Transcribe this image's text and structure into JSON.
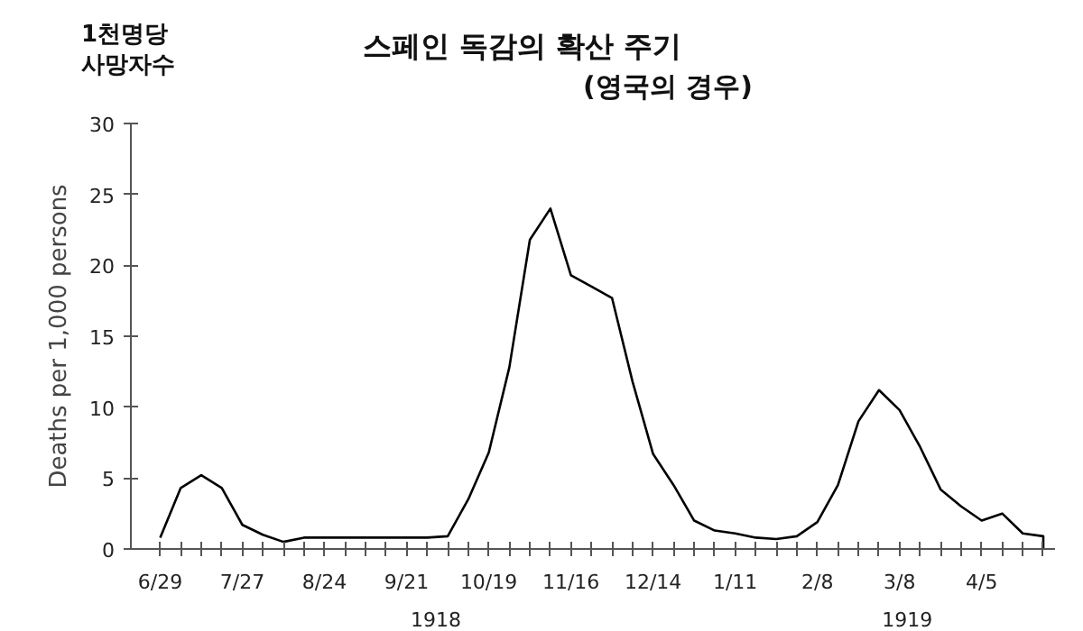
{
  "chart_data": {
    "type": "line",
    "title": "스페인 독감의 확산 주기",
    "subtitle": "(영국의 경우)",
    "ylabel": "Deaths per 1,000 persons",
    "annotations": [
      "1천명당\n사망자수",
      "1918",
      "1919"
    ],
    "x": [
      "1918-06-29",
      "1918-07-06",
      "1918-07-13",
      "1918-07-20",
      "1918-07-27",
      "1918-08-03",
      "1918-08-10",
      "1918-08-17",
      "1918-08-24",
      "1918-08-31",
      "1918-09-07",
      "1918-09-14",
      "1918-09-21",
      "1918-09-28",
      "1918-10-05",
      "1918-10-12",
      "1918-10-19",
      "1918-10-26",
      "1918-11-02",
      "1918-11-09",
      "1918-11-16",
      "1918-11-23",
      "1918-11-30",
      "1918-12-07",
      "1918-12-14",
      "1918-12-21",
      "1918-12-28",
      "1919-01-04",
      "1919-01-11",
      "1919-01-18",
      "1919-01-25",
      "1919-02-01",
      "1919-02-08",
      "1919-02-15",
      "1919-02-22",
      "1919-03-01",
      "1919-03-08",
      "1919-03-15",
      "1919-03-22",
      "1919-03-29",
      "1919-04-05",
      "1919-04-12",
      "1919-04-19",
      "1919-04-26",
      "1919-04-26"
    ],
    "series": [
      {
        "color": "#000000",
        "values": [
          0.8,
          4.3,
          5.2,
          4.3,
          1.7,
          1.0,
          0.5,
          0.8,
          0.8,
          0.8,
          0.8,
          0.8,
          0.8,
          0.8,
          0.9,
          3.5,
          6.8,
          12.8,
          21.8,
          24.0,
          19.3,
          18.5,
          17.7,
          11.8,
          6.7,
          4.5,
          2.0,
          1.3,
          1.1,
          0.8,
          0.7,
          0.9,
          1.9,
          4.5,
          9.0,
          11.2,
          9.8,
          7.2,
          4.2,
          3.0,
          2.0,
          2.5,
          1.1,
          0.9,
          0
        ]
      }
    ],
    "xlim": [
      "1918-06-19",
      "1919-04-30"
    ],
    "xticks": [
      {
        "value": "1918-06-29",
        "label": "6/29"
      },
      {
        "value": "1918-07-06",
        "label": null
      },
      {
        "value": "1918-07-13",
        "label": null
      },
      {
        "value": "1918-07-20",
        "label": null
      },
      {
        "value": "1918-07-27",
        "label": "7/27"
      },
      {
        "value": "1918-08-03",
        "label": null
      },
      {
        "value": "1918-08-10",
        "label": null
      },
      {
        "value": "1918-08-17",
        "label": null
      },
      {
        "value": "1918-08-24",
        "label": "8/24"
      },
      {
        "value": "1918-08-31",
        "label": null
      },
      {
        "value": "1918-09-07",
        "label": null
      },
      {
        "value": "1918-09-14",
        "label": null
      },
      {
        "value": "1918-09-21",
        "label": "9/21"
      },
      {
        "value": "1918-09-28",
        "label": null
      },
      {
        "value": "1918-10-05",
        "label": null
      },
      {
        "value": "1918-10-12",
        "label": null
      },
      {
        "value": "1918-10-19",
        "label": "10/19"
      },
      {
        "value": "1918-10-26",
        "label": null
      },
      {
        "value": "1918-11-02",
        "label": null
      },
      {
        "value": "1918-11-09",
        "label": null
      },
      {
        "value": "1918-11-16",
        "label": "11/16"
      },
      {
        "value": "1918-11-23",
        "label": null
      },
      {
        "value": "1918-11-30",
        "label": null
      },
      {
        "value": "1918-12-07",
        "label": null
      },
      {
        "value": "1918-12-14",
        "label": "12/14"
      },
      {
        "value": "1918-12-21",
        "label": null
      },
      {
        "value": "1918-12-28",
        "label": null
      },
      {
        "value": "1919-01-04",
        "label": null
      },
      {
        "value": "1919-01-11",
        "label": "1/11"
      },
      {
        "value": "1919-01-18",
        "label": null
      },
      {
        "value": "1919-01-25",
        "label": null
      },
      {
        "value": "1919-02-01",
        "label": null
      },
      {
        "value": "1919-02-08",
        "label": "2/8"
      },
      {
        "value": "1919-02-15",
        "label": null
      },
      {
        "value": "1919-02-22",
        "label": null
      },
      {
        "value": "1919-03-01",
        "label": null
      },
      {
        "value": "1919-03-08",
        "label": "3/8"
      },
      {
        "value": "1919-03-15",
        "label": null
      },
      {
        "value": "1919-03-22",
        "label": null
      },
      {
        "value": "1919-03-29",
        "label": null
      },
      {
        "value": "1919-04-05",
        "label": "4/5"
      },
      {
        "value": "1919-04-12",
        "label": null
      },
      {
        "value": "1919-04-19",
        "label": null
      },
      {
        "value": "1919-04-26",
        "label": null
      }
    ],
    "ylim": [
      0,
      30
    ],
    "yticks": [
      0,
      5,
      10,
      15,
      20,
      25,
      30
    ],
    "marker": "none",
    "line_style": "solid"
  }
}
